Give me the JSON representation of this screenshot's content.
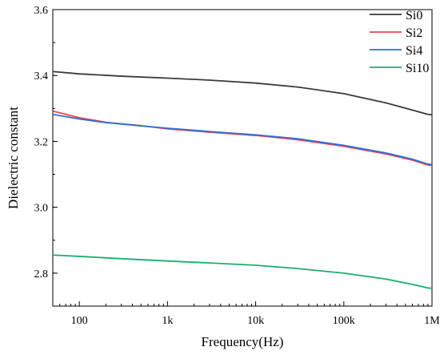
{
  "chart_data": {
    "type": "line",
    "xlabel": "Frequency(Hz)",
    "ylabel": "Dielectric constant",
    "x_scale": "log",
    "xlim": [
      50,
      1000000
    ],
    "ylim": [
      2.7,
      3.6
    ],
    "x_ticks": [
      {
        "value": 100,
        "label": "100"
      },
      {
        "value": 1000,
        "label": "1k"
      },
      {
        "value": 10000,
        "label": "10k"
      },
      {
        "value": 100000,
        "label": "100k"
      },
      {
        "value": 1000000,
        "label": "1M"
      }
    ],
    "y_ticks": [
      {
        "value": 2.8,
        "label": "2.8"
      },
      {
        "value": 3.0,
        "label": "3.0"
      },
      {
        "value": 3.2,
        "label": "3.2"
      },
      {
        "value": 3.4,
        "label": "3.4"
      },
      {
        "value": 3.6,
        "label": "3.6"
      }
    ],
    "grid": false,
    "legend_position": "top-right",
    "series": [
      {
        "name": "Si0",
        "color": "#3a3a3a",
        "points": [
          [
            50,
            3.412
          ],
          [
            100,
            3.405
          ],
          [
            300,
            3.398
          ],
          [
            1000,
            3.392
          ],
          [
            3000,
            3.386
          ],
          [
            10000,
            3.377
          ],
          [
            30000,
            3.365
          ],
          [
            100000,
            3.345
          ],
          [
            300000,
            3.317
          ],
          [
            600000,
            3.295
          ],
          [
            900000,
            3.282
          ],
          [
            1000000,
            3.281
          ]
        ]
      },
      {
        "name": "Si2",
        "color": "#e8474b",
        "points": [
          [
            50,
            3.292
          ],
          [
            100,
            3.272
          ],
          [
            200,
            3.258
          ],
          [
            500,
            3.248
          ],
          [
            1000,
            3.238
          ],
          [
            3000,
            3.228
          ],
          [
            10000,
            3.218
          ],
          [
            30000,
            3.205
          ],
          [
            100000,
            3.185
          ],
          [
            300000,
            3.162
          ],
          [
            600000,
            3.143
          ],
          [
            900000,
            3.128
          ],
          [
            1000000,
            3.127
          ]
        ]
      },
      {
        "name": "Si4",
        "color": "#2f6fd6",
        "points": [
          [
            50,
            3.282
          ],
          [
            100,
            3.268
          ],
          [
            200,
            3.257
          ],
          [
            500,
            3.247
          ],
          [
            1000,
            3.24
          ],
          [
            3000,
            3.23
          ],
          [
            10000,
            3.22
          ],
          [
            30000,
            3.208
          ],
          [
            100000,
            3.188
          ],
          [
            300000,
            3.165
          ],
          [
            600000,
            3.146
          ],
          [
            900000,
            3.131
          ],
          [
            1000000,
            3.13
          ]
        ]
      },
      {
        "name": "Si10",
        "color": "#18b06a",
        "points": [
          [
            50,
            2.855
          ],
          [
            100,
            2.851
          ],
          [
            300,
            2.844
          ],
          [
            1000,
            2.837
          ],
          [
            3000,
            2.831
          ],
          [
            10000,
            2.824
          ],
          [
            30000,
            2.814
          ],
          [
            100000,
            2.8
          ],
          [
            300000,
            2.782
          ],
          [
            600000,
            2.766
          ],
          [
            900000,
            2.755
          ],
          [
            1000000,
            2.754
          ]
        ]
      }
    ]
  }
}
